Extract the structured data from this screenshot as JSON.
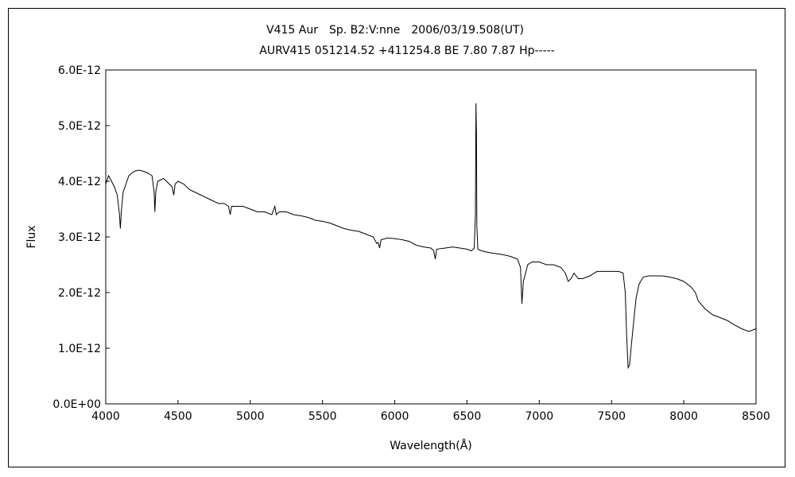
{
  "chart_data": {
    "type": "line",
    "title_line1": "V415 Aur　Sp. B2:V:nne　2006/03/19.508(UT)",
    "title_line2": "AURV415 051214.52 +411254.8 BE 7.80 7.87 Hp-----",
    "xlabel": "Wavelength(Å)",
    "ylabel": "Flux",
    "xlim": [
      4000,
      8500
    ],
    "ylim": [
      0,
      6e-12
    ],
    "x_ticks": [
      "4000",
      "4500",
      "5000",
      "5500",
      "6000",
      "6500",
      "7000",
      "7500",
      "8000",
      "8500"
    ],
    "y_ticks": [
      "0.0E+00",
      "1.0E-12",
      "2.0E-12",
      "3.0E-12",
      "4.0E-12",
      "5.0E-12",
      "6.0E-12"
    ],
    "grid": false,
    "series": [
      {
        "color": "#000000",
        "points": [
          [
            4000,
            3.95e-12
          ],
          [
            4020,
            4.1e-12
          ],
          [
            4040,
            4e-12
          ],
          [
            4060,
            3.9e-12
          ],
          [
            4080,
            3.75e-12
          ],
          [
            4095,
            3.4e-12
          ],
          [
            4101,
            3.15e-12
          ],
          [
            4108,
            3.45e-12
          ],
          [
            4120,
            3.8e-12
          ],
          [
            4140,
            3.95e-12
          ],
          [
            4160,
            4.1e-12
          ],
          [
            4180,
            4.15e-12
          ],
          [
            4200,
            4.18e-12
          ],
          [
            4230,
            4.2e-12
          ],
          [
            4260,
            4.18e-12
          ],
          [
            4290,
            4.15e-12
          ],
          [
            4320,
            4.1e-12
          ],
          [
            4335,
            3.8e-12
          ],
          [
            4340,
            3.45e-12
          ],
          [
            4346,
            3.8e-12
          ],
          [
            4360,
            4e-12
          ],
          [
            4400,
            4.05e-12
          ],
          [
            4440,
            3.95e-12
          ],
          [
            4460,
            3.9e-12
          ],
          [
            4471,
            3.75e-12
          ],
          [
            4480,
            3.95e-12
          ],
          [
            4500,
            4e-12
          ],
          [
            4540,
            3.95e-12
          ],
          [
            4580,
            3.85e-12
          ],
          [
            4620,
            3.8e-12
          ],
          [
            4660,
            3.75e-12
          ],
          [
            4700,
            3.7e-12
          ],
          [
            4740,
            3.65e-12
          ],
          [
            4780,
            3.6e-12
          ],
          [
            4820,
            3.6e-12
          ],
          [
            4850,
            3.55e-12
          ],
          [
            4861,
            3.4e-12
          ],
          [
            4872,
            3.55e-12
          ],
          [
            4900,
            3.55e-12
          ],
          [
            4950,
            3.55e-12
          ],
          [
            5000,
            3.5e-12
          ],
          [
            5050,
            3.45e-12
          ],
          [
            5100,
            3.45e-12
          ],
          [
            5150,
            3.4e-12
          ],
          [
            5170,
            3.55e-12
          ],
          [
            5180,
            3.4e-12
          ],
          [
            5200,
            3.45e-12
          ],
          [
            5250,
            3.45e-12
          ],
          [
            5300,
            3.4e-12
          ],
          [
            5350,
            3.38e-12
          ],
          [
            5400,
            3.35e-12
          ],
          [
            5450,
            3.3e-12
          ],
          [
            5500,
            3.28e-12
          ],
          [
            5550,
            3.25e-12
          ],
          [
            5600,
            3.2e-12
          ],
          [
            5650,
            3.15e-12
          ],
          [
            5700,
            3.12e-12
          ],
          [
            5750,
            3.1e-12
          ],
          [
            5800,
            3.05e-12
          ],
          [
            5850,
            3e-12
          ],
          [
            5876,
            2.88e-12
          ],
          [
            5885,
            2.9e-12
          ],
          [
            5895,
            2.8e-12
          ],
          [
            5905,
            2.95e-12
          ],
          [
            5950,
            2.98e-12
          ],
          [
            6000,
            2.97e-12
          ],
          [
            6050,
            2.95e-12
          ],
          [
            6100,
            2.92e-12
          ],
          [
            6150,
            2.85e-12
          ],
          [
            6200,
            2.82e-12
          ],
          [
            6250,
            2.8e-12
          ],
          [
            6270,
            2.75e-12
          ],
          [
            6280,
            2.6e-12
          ],
          [
            6290,
            2.78e-12
          ],
          [
            6350,
            2.8e-12
          ],
          [
            6400,
            2.82e-12
          ],
          [
            6450,
            2.8e-12
          ],
          [
            6500,
            2.78e-12
          ],
          [
            6530,
            2.75e-12
          ],
          [
            6550,
            2.8e-12
          ],
          [
            6558,
            3.4e-12
          ],
          [
            6562,
            5.4e-12
          ],
          [
            6565,
            4.9e-12
          ],
          [
            6568,
            3.2e-12
          ],
          [
            6575,
            2.78e-12
          ],
          [
            6600,
            2.75e-12
          ],
          [
            6650,
            2.72e-12
          ],
          [
            6700,
            2.7e-12
          ],
          [
            6750,
            2.68e-12
          ],
          [
            6800,
            2.65e-12
          ],
          [
            6850,
            2.6e-12
          ],
          [
            6870,
            2.45e-12
          ],
          [
            6880,
            1.8e-12
          ],
          [
            6890,
            2.2e-12
          ],
          [
            6900,
            2.3e-12
          ],
          [
            6920,
            2.5e-12
          ],
          [
            6950,
            2.55e-12
          ],
          [
            7000,
            2.55e-12
          ],
          [
            7050,
            2.5e-12
          ],
          [
            7100,
            2.5e-12
          ],
          [
            7150,
            2.45e-12
          ],
          [
            7180,
            2.35e-12
          ],
          [
            7200,
            2.2e-12
          ],
          [
            7220,
            2.25e-12
          ],
          [
            7240,
            2.35e-12
          ],
          [
            7270,
            2.25e-12
          ],
          [
            7300,
            2.25e-12
          ],
          [
            7350,
            2.3e-12
          ],
          [
            7400,
            2.38e-12
          ],
          [
            7450,
            2.38e-12
          ],
          [
            7500,
            2.38e-12
          ],
          [
            7550,
            2.38e-12
          ],
          [
            7580,
            2.35e-12
          ],
          [
            7595,
            2e-12
          ],
          [
            7605,
            1.2e-12
          ],
          [
            7615,
            6.5e-13
          ],
          [
            7625,
            7e-13
          ],
          [
            7635,
            1e-12
          ],
          [
            7650,
            1.4e-12
          ],
          [
            7670,
            1.9e-12
          ],
          [
            7690,
            2.15e-12
          ],
          [
            7720,
            2.28e-12
          ],
          [
            7760,
            2.3e-12
          ],
          [
            7800,
            2.3e-12
          ],
          [
            7850,
            2.3e-12
          ],
          [
            7900,
            2.28e-12
          ],
          [
            7950,
            2.25e-12
          ],
          [
            8000,
            2.2e-12
          ],
          [
            8050,
            2.1e-12
          ],
          [
            8080,
            2e-12
          ],
          [
            8100,
            1.85e-12
          ],
          [
            8150,
            1.7e-12
          ],
          [
            8200,
            1.6e-12
          ],
          [
            8250,
            1.55e-12
          ],
          [
            8300,
            1.5e-12
          ],
          [
            8350,
            1.42e-12
          ],
          [
            8400,
            1.35e-12
          ],
          [
            8450,
            1.3e-12
          ],
          [
            8500,
            1.35e-12
          ]
        ]
      }
    ]
  }
}
